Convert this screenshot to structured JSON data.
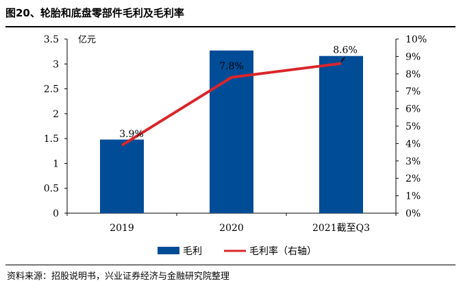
{
  "figure": {
    "title": "图20、轮胎和底盘零部件毛利及毛利率",
    "source": "资料来源：招股说明书，兴业证券经济与金融研究院整理"
  },
  "colors": {
    "bar": "#004C97",
    "line": "#D9262B"
  },
  "chart_data": {
    "type": "bar",
    "categories": [
      "2019",
      "2020",
      "2021截至Q3"
    ],
    "series": [
      {
        "name": "毛利",
        "type": "bar",
        "axis": "left",
        "values": [
          1.48,
          3.27,
          3.16
        ]
      },
      {
        "name": "毛利率（右轴）",
        "type": "line",
        "axis": "right",
        "values": [
          3.9,
          7.8,
          8.6
        ]
      }
    ],
    "data_labels": [
      "3.9%",
      "7.8%",
      "8.6%"
    ],
    "y_left": {
      "unit": "亿元",
      "ylim": [
        0,
        3.5
      ],
      "ticks": [
        "0",
        "0.5",
        "1",
        "1.5",
        "2",
        "2.5",
        "3",
        "3.5"
      ]
    },
    "y_right": {
      "ylim": [
        0,
        10
      ],
      "ticks": [
        "0%",
        "1%",
        "2%",
        "3%",
        "4%",
        "5%",
        "6%",
        "7%",
        "8%",
        "9%",
        "10%"
      ]
    },
    "legend_position": "bottom-center",
    "grid": false
  }
}
